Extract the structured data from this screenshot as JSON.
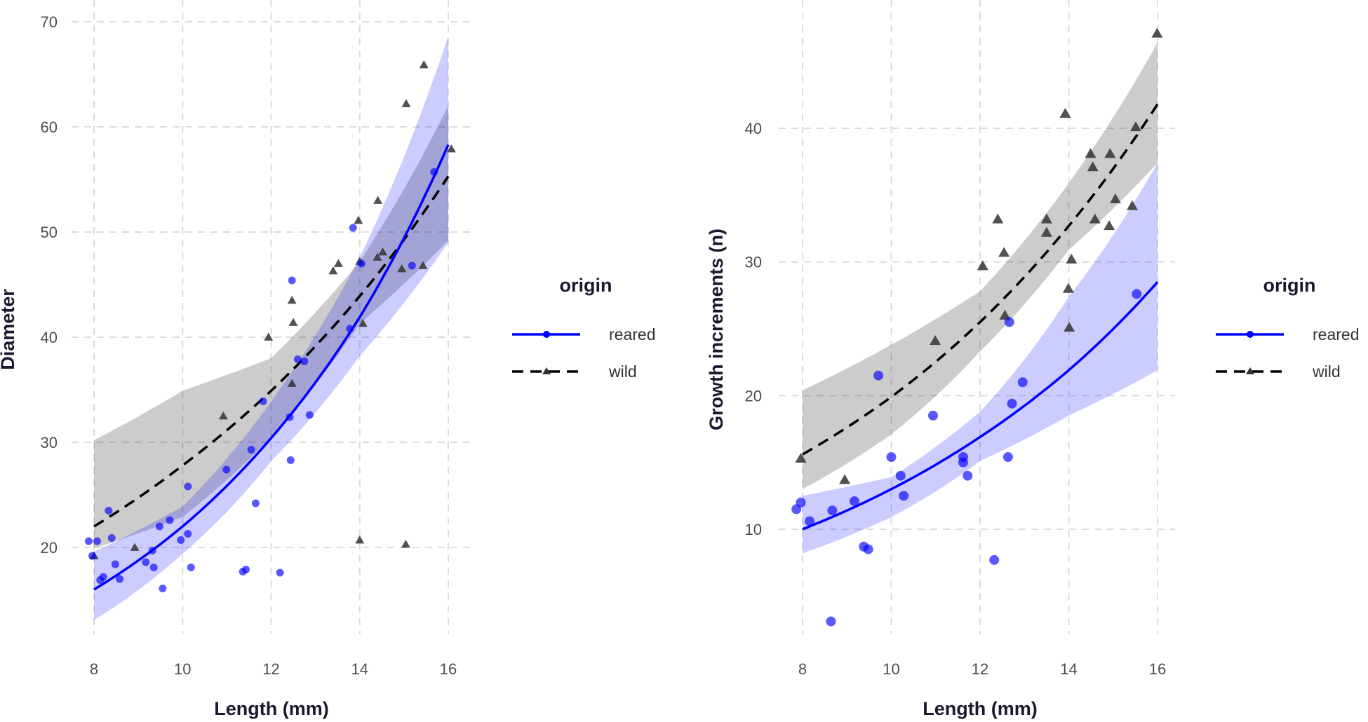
{
  "colors": {
    "reared": "#0000ff",
    "wild": "#000000",
    "reared_band": "#0000ff",
    "wild_band": "#000000",
    "wild_point": "#333333",
    "grid": "#dcdcdc"
  },
  "chart_data": [
    {
      "type": "scatter",
      "xlabel": "Length (mm)",
      "ylabel": "Diameter",
      "xlim": [
        7.6,
        16.5
      ],
      "ylim": [
        11,
        71
      ],
      "xticks": [
        "8",
        "10",
        "12",
        "14",
        "16"
      ],
      "yticks": [
        "20",
        "30",
        "40",
        "50",
        "60",
        "70"
      ],
      "grid": true,
      "legend": {
        "title": "origin",
        "position": "right",
        "entries": [
          "reared",
          "wild"
        ]
      },
      "series": [
        {
          "name": "reared",
          "marker": "circle",
          "line": "solid",
          "points": [
            [
              7.88,
              20.6
            ],
            [
              8.07,
              20.6
            ],
            [
              7.96,
              19.2
            ],
            [
              8.21,
              17.2
            ],
            [
              8.14,
              16.9
            ],
            [
              8.33,
              23.5
            ],
            [
              8.4,
              20.9
            ],
            [
              8.48,
              18.4
            ],
            [
              8.58,
              17.0
            ],
            [
              9.17,
              18.6
            ],
            [
              9.32,
              19.7
            ],
            [
              9.35,
              18.1
            ],
            [
              9.48,
              22.0
            ],
            [
              9.55,
              16.1
            ],
            [
              9.71,
              22.6
            ],
            [
              9.96,
              20.7
            ],
            [
              10.12,
              21.3
            ],
            [
              10.12,
              25.8
            ],
            [
              10.19,
              18.1
            ],
            [
              10.99,
              27.4
            ],
            [
              11.36,
              17.7
            ],
            [
              11.43,
              17.9
            ],
            [
              11.55,
              29.3
            ],
            [
              11.65,
              24.2
            ],
            [
              11.82,
              33.9
            ],
            [
              12.2,
              17.6
            ],
            [
              12.42,
              32.4
            ],
            [
              12.44,
              28.3
            ],
            [
              12.47,
              45.4
            ],
            [
              12.6,
              37.9
            ],
            [
              12.75,
              37.7
            ],
            [
              12.87,
              32.6
            ],
            [
              13.78,
              40.8
            ],
            [
              13.85,
              50.4
            ],
            [
              14.04,
              47.0
            ],
            [
              15.18,
              46.8
            ],
            [
              15.68,
              55.7
            ]
          ],
          "fit": {
            "x": [
              8,
              10,
              12,
              14,
              16
            ],
            "y": [
              16.0,
              22.0,
              30.4,
              41.9,
              58.3
            ],
            "lower": [
              13.1,
              19.4,
              28.2,
              38.2,
              49.0
            ],
            "upper": [
              19.6,
              23.9,
              33.9,
              47.6,
              68.6
            ]
          }
        },
        {
          "name": "wild",
          "marker": "triangle",
          "line": "dashed",
          "points": [
            [
              8.0,
              19.2
            ],
            [
              8.92,
              20.0
            ],
            [
              10.92,
              32.5
            ],
            [
              11.94,
              40.0
            ],
            [
              12.47,
              43.5
            ],
            [
              12.5,
              41.4
            ],
            [
              12.47,
              35.6
            ],
            [
              13.4,
              46.3
            ],
            [
              13.52,
              47.0
            ],
            [
              13.97,
              51.1
            ],
            [
              14.0,
              47.2
            ],
            [
              14.07,
              41.3
            ],
            [
              14.0,
              20.7
            ],
            [
              14.41,
              53.0
            ],
            [
              14.4,
              47.6
            ],
            [
              14.52,
              48.1
            ],
            [
              14.95,
              46.5
            ],
            [
              15.04,
              20.3
            ],
            [
              15.05,
              62.2
            ],
            [
              15.43,
              46.8
            ],
            [
              15.45,
              65.9
            ],
            [
              16.07,
              57.9
            ]
          ],
          "fit": {
            "x": [
              8,
              10,
              12,
              14,
              16
            ],
            "y": [
              22.0,
              27.8,
              34.9,
              43.9,
              55.3
            ],
            "lower": [
              19.9,
              22.9,
              30.5,
              41.3,
              49.2
            ],
            "upper": [
              30.2,
              34.9,
              38.0,
              47.2,
              62.0
            ]
          }
        }
      ]
    },
    {
      "type": "scatter",
      "xlabel": "Length (mm)",
      "ylabel": "Growth increments (n)",
      "xlim": [
        7.6,
        16.5
      ],
      "ylim": [
        1.5,
        48.5
      ],
      "xticks": [
        "8",
        "10",
        "12",
        "14",
        "16"
      ],
      "yticks": [
        "10",
        "20",
        "30",
        "40"
      ],
      "grid": true,
      "legend": {
        "title": "origin",
        "position": "right",
        "entries": [
          "reared",
          "wild"
        ]
      },
      "series": [
        {
          "name": "reared",
          "marker": "circle",
          "line": "solid",
          "points": [
            [
              7.86,
              11.5
            ],
            [
              7.96,
              12.0
            ],
            [
              8.16,
              10.6
            ],
            [
              8.67,
              11.4
            ],
            [
              8.64,
              3.1
            ],
            [
              9.17,
              12.1
            ],
            [
              9.38,
              8.7
            ],
            [
              9.48,
              8.5
            ],
            [
              9.71,
              21.5
            ],
            [
              10.0,
              15.4
            ],
            [
              10.21,
              14.0
            ],
            [
              10.28,
              12.5
            ],
            [
              10.94,
              18.5
            ],
            [
              11.62,
              15.4
            ],
            [
              11.62,
              15.0
            ],
            [
              11.72,
              14.0
            ],
            [
              12.32,
              7.7
            ],
            [
              12.66,
              25.5
            ],
            [
              12.63,
              15.4
            ],
            [
              12.72,
              19.4
            ],
            [
              12.96,
              21.0
            ],
            [
              15.53,
              27.6
            ]
          ],
          "fit": {
            "x": [
              8,
              10,
              12,
              14,
              16
            ],
            "y": [
              10.0,
              13.0,
              16.9,
              21.9,
              28.5
            ],
            "lower": [
              8.2,
              10.9,
              15.1,
              18.5,
              21.9
            ],
            "upper": [
              12.5,
              13.9,
              18.8,
              27.4,
              37.4
            ]
          }
        },
        {
          "name": "wild",
          "marker": "triangle",
          "line": "dashed",
          "points": [
            [
              7.96,
              15.3
            ],
            [
              8.95,
              13.7
            ],
            [
              10.99,
              24.1
            ],
            [
              12.06,
              29.7
            ],
            [
              12.4,
              33.2
            ],
            [
              12.54,
              30.7
            ],
            [
              12.56,
              26.0
            ],
            [
              13.5,
              33.2
            ],
            [
              13.5,
              32.2
            ],
            [
              13.92,
              41.1
            ],
            [
              14.06,
              30.2
            ],
            [
              13.99,
              28.0
            ],
            [
              14.01,
              25.1
            ],
            [
              14.49,
              38.1
            ],
            [
              14.54,
              37.1
            ],
            [
              14.59,
              33.2
            ],
            [
              14.93,
              38.1
            ],
            [
              14.91,
              32.7
            ],
            [
              15.05,
              34.7
            ],
            [
              15.43,
              34.2
            ],
            [
              15.51,
              40.1
            ],
            [
              15.99,
              47.1
            ]
          ],
          "fit": {
            "x": [
              8,
              10,
              12,
              14,
              16
            ],
            "y": [
              15.6,
              19.9,
              25.5,
              32.7,
              41.8
            ],
            "lower": [
              13.0,
              17.1,
              23.3,
              30.9,
              37.4
            ],
            "upper": [
              20.4,
              23.8,
              27.8,
              35.9,
              46.4
            ]
          }
        }
      ]
    }
  ]
}
